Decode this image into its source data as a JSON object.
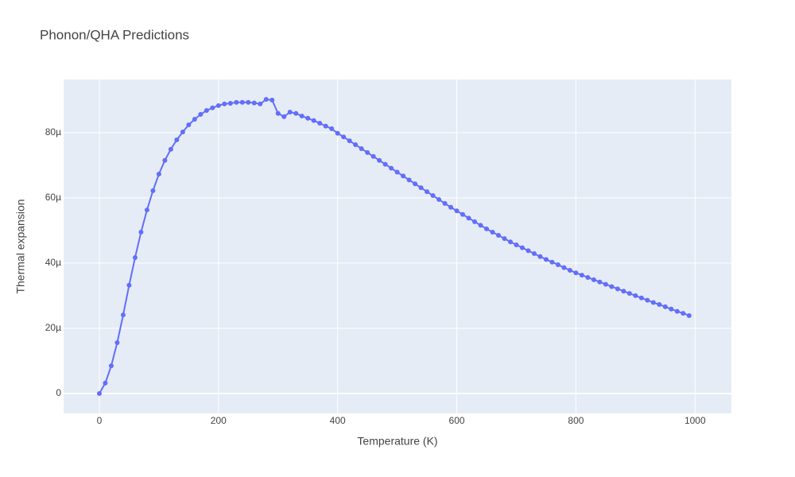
{
  "chart_data": {
    "type": "line",
    "title": "Phonon/QHA Predictions",
    "x_label": "Temperature (K)",
    "y_label": "Thermal expansion",
    "x": [
      0,
      10,
      20,
      30,
      40,
      50,
      60,
      70,
      80,
      90,
      100,
      110,
      120,
      130,
      140,
      150,
      160,
      170,
      180,
      190,
      200,
      210,
      220,
      230,
      240,
      250,
      260,
      270,
      280,
      290,
      300,
      310,
      320,
      330,
      340,
      350,
      360,
      370,
      380,
      390,
      400,
      410,
      420,
      430,
      440,
      450,
      460,
      470,
      480,
      490,
      500,
      510,
      520,
      530,
      540,
      550,
      560,
      570,
      580,
      590,
      600,
      610,
      620,
      630,
      640,
      650,
      660,
      670,
      680,
      690,
      700,
      710,
      720,
      730,
      740,
      750,
      760,
      770,
      780,
      790,
      800,
      810,
      820,
      830,
      840,
      850,
      860,
      870,
      880,
      890,
      900,
      910,
      920,
      930,
      940,
      950,
      960,
      970,
      980,
      990
    ],
    "values": [
      0,
      3.2e-06,
      8.5e-06,
      1.56e-05,
      2.41e-05,
      3.32e-05,
      4.17e-05,
      4.95e-05,
      5.63e-05,
      6.22e-05,
      6.73e-05,
      7.15e-05,
      7.49e-05,
      7.78e-05,
      8.02e-05,
      8.24e-05,
      8.41e-05,
      8.56e-05,
      8.68e-05,
      8.76e-05,
      8.83e-05,
      8.88e-05,
      8.9e-05,
      8.93e-05,
      8.93e-05,
      8.93e-05,
      8.91e-05,
      8.88e-05,
      9.02e-05,
      9e-05,
      8.59e-05,
      8.49e-05,
      8.63e-05,
      8.59e-05,
      8.51e-05,
      8.44e-05,
      8.37e-05,
      8.29e-05,
      8.2e-05,
      8.12e-05,
      7.98e-05,
      7.87e-05,
      7.75e-05,
      7.63e-05,
      7.51e-05,
      7.39e-05,
      7.27e-05,
      7.15e-05,
      7.03e-05,
      6.91e-05,
      6.79e-05,
      6.67e-05,
      6.55e-05,
      6.43e-05,
      6.31e-05,
      6.19e-05,
      6.07e-05,
      5.95e-05,
      5.83e-05,
      5.71e-05,
      5.6e-05,
      5.49e-05,
      5.38e-05,
      5.27e-05,
      5.16e-05,
      5.05e-05,
      4.95e-05,
      4.85e-05,
      4.75e-05,
      4.65e-05,
      4.56e-05,
      4.47e-05,
      4.38e-05,
      4.29e-05,
      4.2e-05,
      4.11e-05,
      4.03e-05,
      3.95e-05,
      3.86e-05,
      3.78e-05,
      3.7e-05,
      3.63e-05,
      3.56e-05,
      3.49e-05,
      3.42e-05,
      3.35e-05,
      3.28e-05,
      3.21e-05,
      3.14e-05,
      3.07e-05,
      3e-05,
      2.93e-05,
      2.86e-05,
      2.79e-05,
      2.73e-05,
      2.66e-05,
      2.59e-05,
      2.52e-05,
      2.46e-05,
      2.39e-05
    ],
    "color": "#636efa",
    "xlim": [
      -60,
      1061
    ],
    "xticks": [
      0,
      200,
      400,
      600,
      800,
      1000
    ],
    "ylim": [
      -6.1e-06,
      9.63e-05
    ],
    "yticks": [
      {
        "value": 0,
        "label": "0"
      },
      {
        "value": 2e-05,
        "label": "20µ"
      },
      {
        "value": 4e-05,
        "label": "40µ"
      },
      {
        "value": 6e-05,
        "label": "60µ"
      },
      {
        "value": 8e-05,
        "label": "80µ"
      }
    ],
    "grid": true
  }
}
